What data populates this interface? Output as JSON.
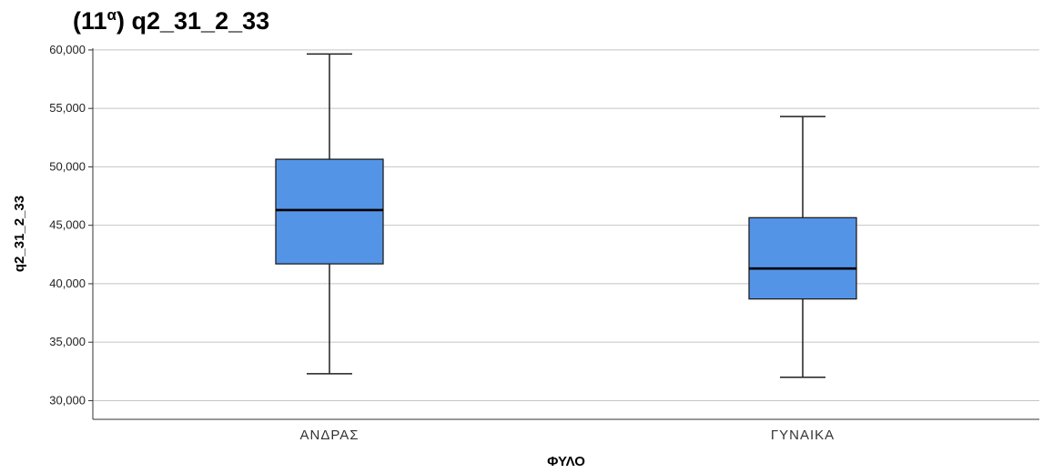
{
  "title": {
    "main": "(11",
    "superscript": "α",
    "rest": ") q2_31_2_33"
  },
  "chart_data": {
    "type": "boxplot",
    "ylabel": "q2_31_2_33",
    "xlabel": "ΦΥΛΟ",
    "ylim": [
      28400,
      60150
    ],
    "y_ticks": [
      30000,
      35000,
      40000,
      45000,
      50000,
      55000,
      60000
    ],
    "y_tick_labels": [
      "30,000",
      "35,000",
      "40,000",
      "45,000",
      "50,000",
      "55,000",
      "60,000"
    ],
    "grid": true,
    "categories": [
      "ΑΝΔΡΑΣ",
      "ΓΥΝΑΙΚΑ"
    ],
    "boxes": [
      {
        "category": "ΑΝΔΡΑΣ",
        "min": 32300,
        "q1": 41700,
        "median": 46300,
        "q3": 50650,
        "max": 59650
      },
      {
        "category": "ΓΥΝΑΙΚΑ",
        "min": 32000,
        "q1": 38700,
        "median": 41300,
        "q3": 45650,
        "max": 54300
      }
    ],
    "colors": {
      "box_fill": "#5494e6",
      "box_stroke": "#1f1f1f",
      "grid": "#c4c4c4",
      "axis": "#333333"
    }
  }
}
